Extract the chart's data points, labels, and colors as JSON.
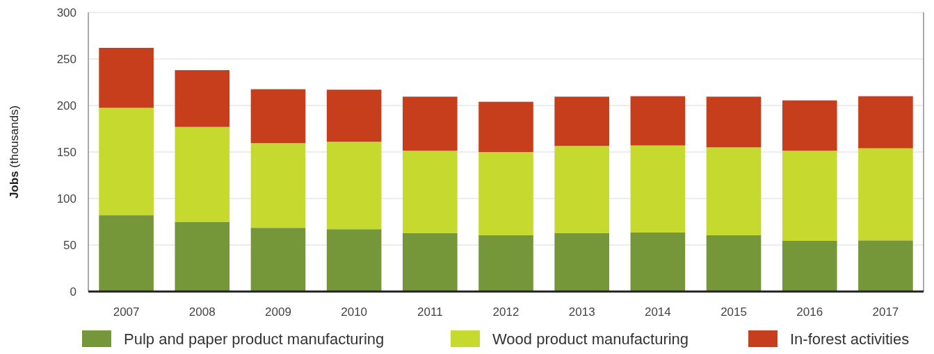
{
  "chart_data": {
    "type": "bar",
    "stacked": true,
    "ylabel": "Jobs (thousands)",
    "categories": [
      "2007",
      "2008",
      "2009",
      "2010",
      "2011",
      "2012",
      "2013",
      "2014",
      "2015",
      "2016",
      "2017"
    ],
    "series": [
      {
        "name": "Pulp and paper product manufacturing",
        "color": "#76963a",
        "values": [
          82,
          75,
          68.5,
          67,
          63,
          60.5,
          63,
          63.5,
          60.5,
          54.5,
          55
        ]
      },
      {
        "name": "Wood product manufacturing",
        "color": "#c5d92f",
        "values": [
          115.5,
          102,
          91,
          94,
          88.5,
          89.5,
          93.5,
          93.5,
          94.5,
          97,
          99
        ]
      },
      {
        "name": "In-forest activities",
        "color": "#c63e1c",
        "values": [
          64.5,
          61,
          58,
          56,
          58,
          54,
          53,
          53,
          54.5,
          54,
          56
        ]
      }
    ],
    "ylim": [
      0,
      300
    ],
    "yticks": [
      0,
      50,
      100,
      150,
      200,
      250,
      300
    ],
    "grid": "y",
    "legend": "bottom"
  }
}
